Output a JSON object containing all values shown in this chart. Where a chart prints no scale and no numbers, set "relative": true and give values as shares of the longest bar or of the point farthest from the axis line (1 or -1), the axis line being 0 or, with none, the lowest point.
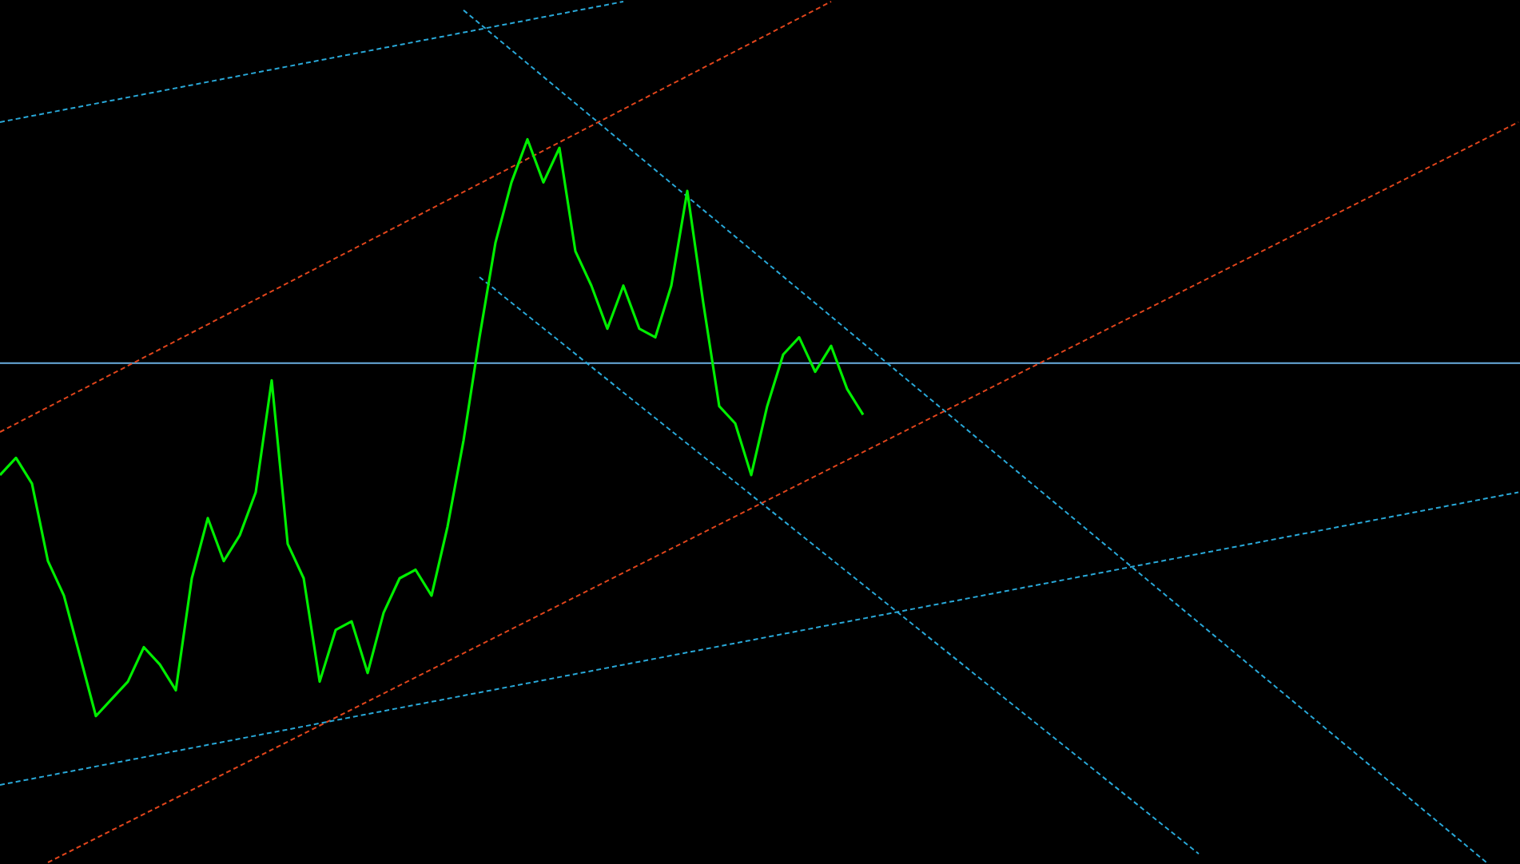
{
  "chart_data": {
    "type": "line",
    "relative": true,
    "categories": [
      null,
      null,
      null,
      null,
      null,
      null,
      null,
      null,
      null,
      null,
      null,
      null,
      null,
      null,
      null,
      null,
      null,
      null,
      null,
      null,
      null,
      null,
      null,
      null,
      null,
      null,
      null,
      null,
      null,
      null,
      null,
      null,
      null,
      null,
      null,
      null,
      null,
      null,
      null,
      null,
      null,
      null,
      null,
      null,
      null,
      null,
      null,
      null,
      null,
      null,
      null,
      null,
      null,
      null,
      null,
      null,
      null,
      null,
      null,
      null,
      null,
      null,
      null,
      null,
      null,
      null,
      null,
      null,
      null,
      null,
      null,
      null,
      null,
      null,
      null,
      null,
      null,
      null,
      null,
      null,
      null,
      null,
      null,
      null,
      null,
      null,
      null,
      null,
      null,
      null,
      null,
      null,
      null,
      null,
      null,
      null
    ],
    "series": [
      {
        "color": "#00ee00",
        "line_style": "solid",
        "values": [
          0.45,
          0.47,
          0.44,
          0.35,
          0.31,
          0.24,
          0.17,
          0.19,
          0.21,
          0.25,
          0.23,
          0.2,
          0.33,
          0.4,
          0.35,
          0.38,
          0.43,
          0.56,
          0.37,
          0.33,
          0.21,
          0.27,
          0.28,
          0.22,
          0.29,
          0.33,
          0.34,
          0.31,
          0.39,
          0.49,
          0.61,
          0.72,
          0.79,
          0.84,
          0.79,
          0.83,
          0.71,
          0.67,
          0.62,
          0.67,
          0.62,
          0.61,
          0.67,
          0.78,
          0.65,
          0.53,
          0.51,
          0.45,
          0.53,
          0.59,
          0.61,
          0.57,
          0.6,
          0.55,
          0.52,
          null,
          null,
          null,
          null,
          null,
          null,
          null,
          null,
          null,
          null,
          null,
          null,
          null,
          null,
          null,
          null,
          null,
          null,
          null,
          null,
          null,
          null,
          null,
          null,
          null,
          null,
          null,
          null,
          null,
          null,
          null,
          null,
          null,
          null,
          null,
          null,
          null,
          null,
          null,
          null,
          null
        ]
      },
      {
        "color": "#29a8d8",
        "line_style": "dashed",
        "values": [
          0.86,
          null,
          null,
          null,
          null,
          null,
          null,
          null,
          null,
          null,
          null,
          null,
          null,
          null,
          null,
          null,
          null,
          null,
          null,
          null,
          null,
          null,
          null,
          null,
          null,
          null,
          null,
          null,
          null,
          null,
          null,
          null,
          null,
          null,
          null,
          null,
          null,
          null,
          null,
          1.0,
          null,
          null,
          null,
          null,
          null,
          null,
          null,
          null,
          null,
          null,
          null,
          null,
          null,
          null,
          null,
          null,
          null,
          null,
          null,
          null,
          null,
          null,
          null,
          null,
          null,
          null,
          null,
          null,
          null,
          null,
          null,
          null,
          null,
          null,
          null,
          null,
          null,
          null,
          null,
          null,
          null,
          null,
          null,
          null,
          null,
          null,
          null,
          null,
          null,
          null,
          null,
          null,
          null,
          null,
          null,
          null
        ]
      },
      {
        "color": "#e0451c",
        "line_style": "dashed",
        "values": [
          0.5,
          null,
          null,
          null,
          null,
          null,
          null,
          null,
          null,
          null,
          null,
          null,
          null,
          null,
          null,
          null,
          null,
          null,
          null,
          null,
          null,
          null,
          null,
          null,
          null,
          null,
          null,
          null,
          null,
          null,
          null,
          null,
          null,
          null,
          null,
          null,
          null,
          null,
          null,
          null,
          null,
          null,
          null,
          null,
          null,
          null,
          null,
          null,
          null,
          null,
          null,
          null,
          1.0,
          null,
          null,
          null,
          null,
          null,
          null,
          null,
          null,
          null,
          null,
          null,
          null,
          null,
          null,
          null,
          null,
          null,
          null,
          null,
          null,
          null,
          null,
          null,
          null,
          null,
          null,
          null,
          null,
          null,
          null,
          null,
          null,
          null,
          null,
          null,
          null,
          null,
          null,
          null,
          null,
          null,
          null,
          null
        ]
      },
      {
        "color": "#29a8d8",
        "line_style": "dashed",
        "values": [
          null,
          null,
          null,
          null,
          null,
          null,
          null,
          null,
          null,
          null,
          null,
          null,
          null,
          null,
          null,
          null,
          null,
          null,
          null,
          null,
          null,
          null,
          null,
          null,
          null,
          null,
          null,
          null,
          null,
          0.99,
          null,
          null,
          null,
          null,
          null,
          null,
          null,
          null,
          null,
          null,
          null,
          null,
          null,
          null,
          null,
          null,
          null,
          null,
          null,
          null,
          null,
          null,
          null,
          null,
          null,
          null,
          null,
          null,
          null,
          null,
          null,
          null,
          null,
          null,
          null,
          null,
          null,
          null,
          null,
          null,
          null,
          null,
          null,
          null,
          null,
          null,
          null,
          null,
          null,
          null,
          null,
          null,
          null,
          null,
          null,
          null,
          null,
          null,
          null,
          null,
          null,
          null,
          null,
          0.0,
          null,
          null
        ]
      },
      {
        "color": "#29a8d8",
        "line_style": "dashed",
        "values": [
          null,
          null,
          null,
          null,
          null,
          null,
          null,
          null,
          null,
          null,
          null,
          null,
          null,
          null,
          null,
          null,
          null,
          null,
          null,
          null,
          null,
          null,
          null,
          null,
          null,
          null,
          null,
          null,
          null,
          null,
          0.68,
          null,
          null,
          null,
          null,
          null,
          null,
          null,
          null,
          null,
          null,
          null,
          null,
          null,
          null,
          null,
          null,
          null,
          null,
          null,
          null,
          null,
          null,
          null,
          null,
          null,
          null,
          null,
          null,
          null,
          null,
          null,
          null,
          null,
          null,
          null,
          null,
          null,
          null,
          null,
          null,
          null,
          null,
          null,
          null,
          0.01,
          null,
          null,
          null,
          null,
          null,
          null,
          null,
          null,
          null,
          null,
          null,
          null,
          null,
          null,
          null,
          null,
          null,
          null,
          null,
          null
        ]
      },
      {
        "color": "#e0451c",
        "line_style": "dashed",
        "values": [
          null,
          null,
          null,
          0.0,
          null,
          null,
          null,
          null,
          null,
          null,
          null,
          null,
          null,
          null,
          null,
          null,
          null,
          null,
          null,
          null,
          null,
          null,
          null,
          null,
          null,
          null,
          null,
          null,
          null,
          null,
          null,
          null,
          null,
          null,
          null,
          null,
          null,
          null,
          null,
          null,
          null,
          null,
          null,
          null,
          null,
          null,
          null,
          null,
          null,
          null,
          null,
          null,
          null,
          null,
          null,
          null,
          null,
          null,
          null,
          null,
          null,
          null,
          null,
          null,
          null,
          null,
          null,
          null,
          null,
          null,
          null,
          null,
          null,
          null,
          null,
          null,
          null,
          null,
          null,
          null,
          null,
          null,
          null,
          null,
          null,
          null,
          null,
          null,
          null,
          null,
          null,
          null,
          null,
          null,
          null,
          0.86
        ]
      },
      {
        "color": "#29a8d8",
        "line_style": "dashed",
        "values": [
          0.09,
          null,
          null,
          null,
          null,
          null,
          null,
          null,
          null,
          null,
          null,
          null,
          null,
          null,
          null,
          null,
          null,
          null,
          null,
          null,
          null,
          null,
          null,
          null,
          null,
          null,
          null,
          null,
          null,
          null,
          null,
          null,
          null,
          null,
          null,
          null,
          null,
          null,
          null,
          null,
          null,
          null,
          null,
          null,
          null,
          null,
          null,
          null,
          null,
          null,
          null,
          null,
          null,
          null,
          null,
          null,
          null,
          null,
          null,
          null,
          null,
          null,
          null,
          null,
          null,
          null,
          null,
          null,
          null,
          null,
          null,
          null,
          null,
          null,
          null,
          null,
          null,
          null,
          null,
          null,
          null,
          null,
          null,
          null,
          null,
          null,
          null,
          null,
          null,
          null,
          null,
          null,
          null,
          null,
          null,
          0.43
        ]
      }
    ],
    "ref_lines": [
      {
        "axis": "y",
        "value": 0.58,
        "color": "#6aaee0",
        "line_style": "solid"
      }
    ]
  }
}
